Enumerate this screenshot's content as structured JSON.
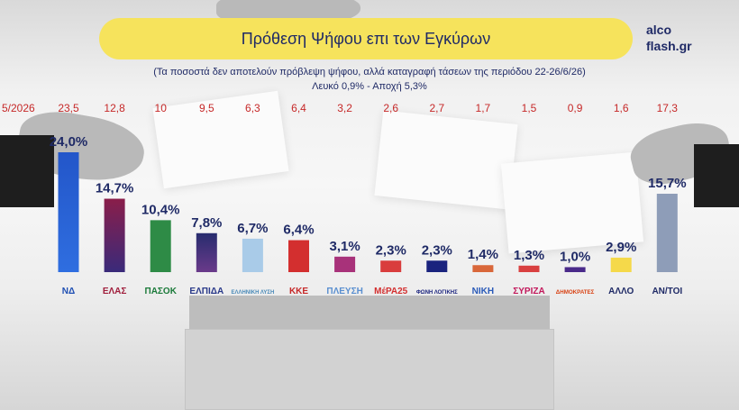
{
  "title": "Πρόθεση Ψήφου επι των Εγκύρων",
  "brand": {
    "line1": "alco",
    "line2": "flash.gr"
  },
  "subtitle": {
    "line1": "(Τα ποσοστά δεν αποτελούν πρόβλεψη ψήφου, αλλά καταγραφή τάσεων της περιόδου 22-26/6/26)",
    "line2": "Λευκό 0,9% - Αποχή 5,3%"
  },
  "colors": {
    "accent": "#f6e35c",
    "navy": "#1f2a66",
    "previous": "#c62828"
  },
  "chart_data": {
    "type": "bar",
    "previous_label": "5/2026",
    "categories": [
      "ΝΔ",
      "ΕΛΑΣ",
      "ΠΑΣΟΚ",
      "ΕΛΠΙΔΑ",
      "ΕΛΛΗΝΙΚΗ ΛΥΣΗ",
      "ΚΚΕ",
      "ΠΛΕΥΣΗ ΕΛΕΥΘΕΡΙΑΣ",
      "ΜέΡΑ25",
      "ΦΩΝΗ ΛΟΓΙΚΗΣ",
      "ΝΙΚΗ",
      "ΣΥΡΙΖΑ",
      "ΔΗΜΟΚΡΑΤΕΣ",
      "ΑΛΛΟ",
      "ΑΝ/ΤΟΙ"
    ],
    "logo_text": [
      "ΝΔ",
      "ΕΛΑΣ",
      "ΠΑΣΟΚ",
      "ΕΛΠΙΔΑ",
      "ΕΛΛΗΝΙΚΗ ΛΥΣΗ",
      "ΚΚΕ",
      "ΠΛΕΥΣΗ",
      "ΜέΡΑ25",
      "ΦΩΝΗ ΛΟΓΙΚΗΣ",
      "ΝΙΚΗ",
      "ΣΥΡΙΖΑ",
      "ΔΗΜΟΚΡΑΤΕΣ",
      "ΑΛΛΟ",
      "ΑΝ/ΤΟΙ"
    ],
    "values": [
      24.0,
      14.7,
      10.4,
      7.8,
      6.7,
      6.4,
      3.1,
      2.3,
      2.3,
      1.4,
      1.3,
      1.0,
      2.9,
      15.7
    ],
    "value_labels": [
      "24,0%",
      "14,7%",
      "10,4%",
      "7,8%",
      "6,7%",
      "6,4%",
      "3,1%",
      "2,3%",
      "2,3%",
      "1,4%",
      "1,3%",
      "1,0%",
      "2,9%",
      "15,7%"
    ],
    "previous_values": [
      "23,5",
      "12,8",
      "10",
      "9,5",
      "6,3",
      "6,4",
      "3,2",
      "2,6",
      "2,7",
      "1,7",
      "1,5",
      "0,9",
      "1,6",
      "17,3"
    ],
    "bar_colors": [
      "#2356c9",
      "#8a1e4a",
      "#2e8b46",
      "#272c6e",
      "#a9cbe8",
      "#d32f2f",
      "#a8327a",
      "#d93d3d",
      "#1a237e",
      "#d9673a",
      "#d94040",
      "#4a2a8a",
      "#f5d94a",
      "#8e9db8"
    ],
    "bar_gradient_to": [
      "#2f6ee0",
      "#3a2a7a",
      "#2e8b46",
      "#6a3a8a",
      "#a9cbe8",
      "#d32f2f",
      "#a8327a",
      "#d93d3d",
      "#1a237e",
      "#d9673a",
      "#d94040",
      "#4a2a8a",
      "#f5d94a",
      "#8e9db8"
    ],
    "logo_colors": [
      "#1f4fb3",
      "#a01e3c",
      "#1b7a3a",
      "#2a3a8a",
      "#4a8ab8",
      "#c62828",
      "#5a8fd0",
      "#d32f2f",
      "#1a237e",
      "#2a5ab8",
      "#c2185b",
      "#d84315",
      "#1f2a66",
      "#1f2a66"
    ],
    "ylim": [
      0,
      24.0
    ]
  }
}
